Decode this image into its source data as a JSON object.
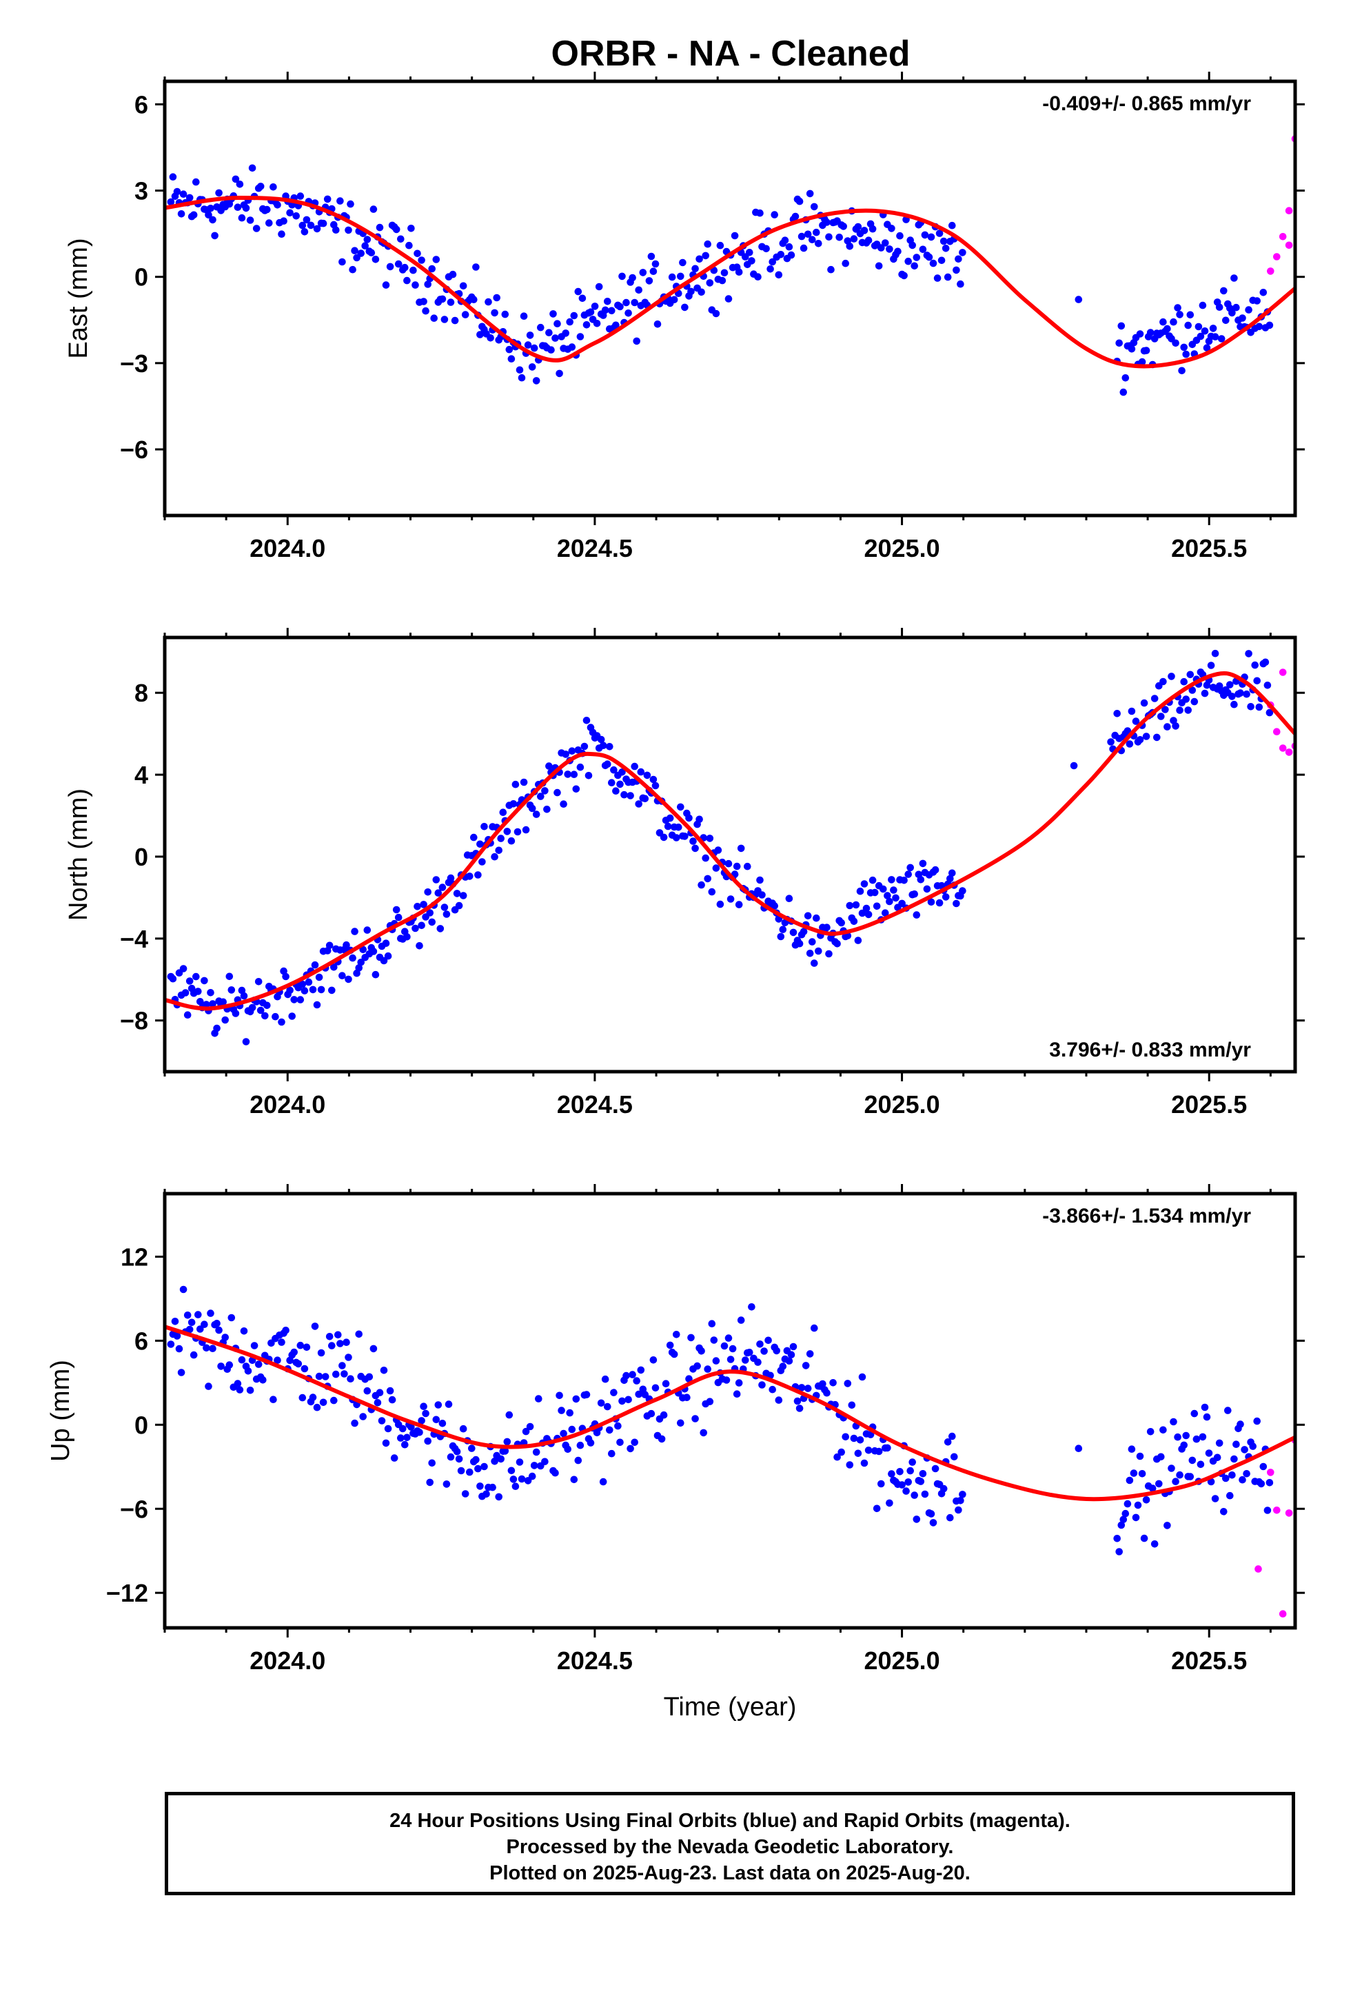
{
  "title": "ORBR  - NA - Cleaned",
  "footer": {
    "line1": "24 Hour Positions Using Final Orbits (blue) and Rapid Orbits (magenta).",
    "line2": "Processed by the Nevada Geodetic Laboratory.",
    "line3": "Plotted on 2025-Aug-23. Last data on 2025-Aug-20."
  },
  "colors": {
    "final": "#0000ff",
    "rapid": "#ff00ff",
    "fit": "#ff0000",
    "axis": "#000000"
  },
  "chart_data": [
    {
      "type": "scatter",
      "ylabel": "East (mm)",
      "xlabel": "",
      "xlim": [
        2023.8,
        2025.64
      ],
      "ylim": [
        -8.3,
        6.8
      ],
      "xticks": [
        2024.0,
        2024.5,
        2025.0,
        2025.5
      ],
      "xtick_labels": [
        "2024.0",
        "2024.5",
        "2025.0",
        "2025.5"
      ],
      "yticks": [
        -6,
        -3,
        0,
        3,
        6
      ],
      "ytick_labels": [
        "−6",
        "−3",
        "0",
        "3",
        "6"
      ],
      "rate_label": "-0.409+/- 0.865 mm/yr",
      "rate_position": "top-right",
      "final_trend": [
        [
          2023.81,
          2.5
        ],
        [
          2024.0,
          2.5
        ],
        [
          2024.2,
          0.5
        ],
        [
          2024.4,
          -2.7
        ],
        [
          2024.6,
          -0.5
        ],
        [
          2024.85,
          1.7
        ],
        [
          2025.08,
          0.8
        ],
        [
          2025.35,
          -2.6
        ],
        [
          2025.48,
          -1.7
        ],
        [
          2025.6,
          -1.1
        ]
      ],
      "final_spread": 1.0,
      "final_gaps": [
        [
          2025.1,
          2025.35
        ]
      ],
      "rapid_points": [
        [
          2025.6,
          0.2
        ],
        [
          2025.61,
          0.7
        ],
        [
          2025.62,
          1.4
        ],
        [
          2025.63,
          2.3
        ],
        [
          2025.63,
          1.1
        ],
        [
          2025.64,
          4.8
        ]
      ],
      "fit_curve": [
        [
          2023.8,
          2.4
        ],
        [
          2023.92,
          2.75
        ],
        [
          2024.05,
          2.4
        ],
        [
          2024.2,
          0.6
        ],
        [
          2024.4,
          -2.7
        ],
        [
          2024.5,
          -2.3
        ],
        [
          2024.65,
          -0.2
        ],
        [
          2024.8,
          1.7
        ],
        [
          2024.95,
          2.3
        ],
        [
          2025.08,
          1.5
        ],
        [
          2025.2,
          -0.8
        ],
        [
          2025.3,
          -2.5
        ],
        [
          2025.38,
          -3.1
        ],
        [
          2025.48,
          -2.8
        ],
        [
          2025.56,
          -1.8
        ],
        [
          2025.64,
          -0.4
        ]
      ]
    },
    {
      "type": "scatter",
      "ylabel": "North (mm)",
      "xlabel": "",
      "xlim": [
        2023.8,
        2025.64
      ],
      "ylim": [
        -10.5,
        10.7
      ],
      "xticks": [
        2024.0,
        2024.5,
        2025.0,
        2025.5
      ],
      "xtick_labels": [
        "2024.0",
        "2024.5",
        "2025.0",
        "2025.5"
      ],
      "yticks": [
        -8,
        -4,
        0,
        4,
        8
      ],
      "ytick_labels": [
        "−8",
        "−4",
        "0",
        "4",
        "8"
      ],
      "rate_label": "3.796+/- 0.833 mm/yr",
      "rate_position": "bottom-right",
      "final_trend": [
        [
          2023.81,
          -6.5
        ],
        [
          2023.9,
          -7.6
        ],
        [
          2024.0,
          -6.5
        ],
        [
          2024.2,
          -3.5
        ],
        [
          2024.3,
          -0.5
        ],
        [
          2024.4,
          3.0
        ],
        [
          2024.5,
          5.5
        ],
        [
          2024.6,
          2.5
        ],
        [
          2024.7,
          -0.5
        ],
        [
          2024.8,
          -2.8
        ],
        [
          2024.87,
          -4.5
        ],
        [
          2024.95,
          -2.2
        ],
        [
          2025.08,
          -1.5
        ],
        [
          2025.35,
          5.5
        ],
        [
          2025.5,
          8.5
        ],
        [
          2025.6,
          8.0
        ]
      ],
      "final_spread": 1.2,
      "final_gaps": [
        [
          2025.1,
          2025.34
        ]
      ],
      "rapid_points": [
        [
          2025.6,
          7.4
        ],
        [
          2025.62,
          9.0
        ],
        [
          2025.62,
          5.3
        ],
        [
          2025.63,
          5.1
        ],
        [
          2025.64,
          5.4
        ],
        [
          2025.61,
          6.1
        ]
      ],
      "fit_curve": [
        [
          2023.8,
          -7.0
        ],
        [
          2023.88,
          -7.4
        ],
        [
          2024.0,
          -6.3
        ],
        [
          2024.15,
          -3.8
        ],
        [
          2024.25,
          -2.0
        ],
        [
          2024.35,
          1.5
        ],
        [
          2024.45,
          4.5
        ],
        [
          2024.5,
          5.0
        ],
        [
          2024.55,
          4.3
        ],
        [
          2024.65,
          1.5
        ],
        [
          2024.75,
          -1.8
        ],
        [
          2024.85,
          -3.5
        ],
        [
          2024.92,
          -3.6
        ],
        [
          2025.05,
          -1.9
        ],
        [
          2025.2,
          0.7
        ],
        [
          2025.3,
          3.5
        ],
        [
          2025.4,
          6.8
        ],
        [
          2025.5,
          8.8
        ],
        [
          2025.56,
          8.5
        ],
        [
          2025.64,
          6.0
        ]
      ]
    },
    {
      "type": "scatter",
      "ylabel": "Up (mm)",
      "xlabel": "Time (year)",
      "xlim": [
        2023.8,
        2025.64
      ],
      "ylim": [
        -14.5,
        16.5
      ],
      "xticks": [
        2024.0,
        2024.5,
        2025.0,
        2025.5
      ],
      "xtick_labels": [
        "2024.0",
        "2024.5",
        "2025.0",
        "2025.5"
      ],
      "yticks": [
        -12,
        -6,
        0,
        6,
        12
      ],
      "ytick_labels": [
        "−12",
        "−6",
        "0",
        "6",
        "12"
      ],
      "rate_label": "-3.866+/- 1.534 mm/yr",
      "rate_position": "top-right",
      "final_trend": [
        [
          2023.81,
          6.0
        ],
        [
          2023.95,
          5.0
        ],
        [
          2024.1,
          3.5
        ],
        [
          2024.25,
          -1.5
        ],
        [
          2024.35,
          -3.0
        ],
        [
          2024.5,
          0.0
        ],
        [
          2024.65,
          3.0
        ],
        [
          2024.75,
          5.0
        ],
        [
          2024.88,
          2.0
        ],
        [
          2025.0,
          -4.0
        ],
        [
          2025.08,
          -3.5
        ],
        [
          2025.35,
          -6.0
        ],
        [
          2025.48,
          -2.0
        ],
        [
          2025.6,
          -3.0
        ]
      ],
      "final_spread": 3.0,
      "final_gaps": [
        [
          2025.1,
          2025.35
        ]
      ],
      "rapid_points": [
        [
          2025.58,
          -10.3
        ],
        [
          2025.6,
          -3.4
        ],
        [
          2025.61,
          -6.1
        ],
        [
          2025.62,
          -13.5
        ],
        [
          2025.63,
          -6.3
        ],
        [
          2025.64,
          -1.1
        ]
      ],
      "fit_curve": [
        [
          2023.8,
          7.0
        ],
        [
          2023.95,
          4.8
        ],
        [
          2024.1,
          2.0
        ],
        [
          2024.2,
          0.2
        ],
        [
          2024.33,
          -1.5
        ],
        [
          2024.45,
          -1.0
        ],
        [
          2024.6,
          1.8
        ],
        [
          2024.72,
          3.8
        ],
        [
          2024.85,
          2.0
        ],
        [
          2025.0,
          -1.5
        ],
        [
          2025.15,
          -4.0
        ],
        [
          2025.3,
          -5.3
        ],
        [
          2025.45,
          -4.5
        ],
        [
          2025.55,
          -2.8
        ],
        [
          2025.64,
          -0.9
        ]
      ]
    }
  ]
}
